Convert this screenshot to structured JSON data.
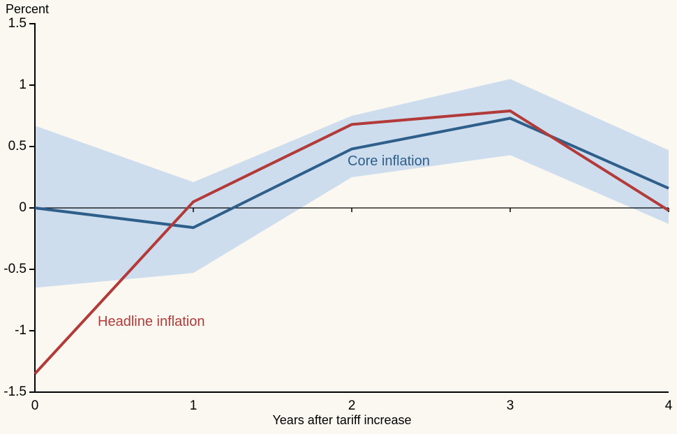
{
  "colors": {
    "background": "#fbf8f1",
    "axis": "#000000",
    "band": "#cdddee",
    "core_line": "#2e5f8a",
    "headline_line": "#b23a38"
  },
  "chart_data": {
    "type": "line",
    "title": "",
    "ylabel": "Percent",
    "xlabel": "Years after tariff increase",
    "x": [
      0,
      1,
      2,
      3,
      4
    ],
    "x_ticks": [
      "0",
      "1",
      "2",
      "3",
      "4"
    ],
    "y_ticks": [
      "1.5",
      "1",
      "0.5",
      "0",
      "-0.5",
      "-1",
      "-1.5"
    ],
    "y_tick_values": [
      1.5,
      1,
      0.5,
      0,
      -0.5,
      -1,
      -1.5
    ],
    "xlim": [
      0,
      4
    ],
    "ylim": [
      -1.5,
      1.5
    ],
    "grid": false,
    "legend": "inline-labels",
    "zero_line": true,
    "series": [
      {
        "name": "Core inflation",
        "color": "#2e5f8a",
        "values": [
          0.0,
          -0.16,
          0.48,
          0.73,
          0.16
        ]
      },
      {
        "name": "Headline inflation",
        "color": "#b23a38",
        "values": [
          -1.35,
          0.05,
          0.68,
          0.79,
          -0.02
        ]
      }
    ],
    "band": {
      "label": "confidence-band-around-core-inflation",
      "color": "#cdddee",
      "upper": [
        0.67,
        0.21,
        0.75,
        1.05,
        0.47
      ],
      "lower": [
        -0.65,
        -0.53,
        0.25,
        0.43,
        -0.13
      ]
    }
  }
}
